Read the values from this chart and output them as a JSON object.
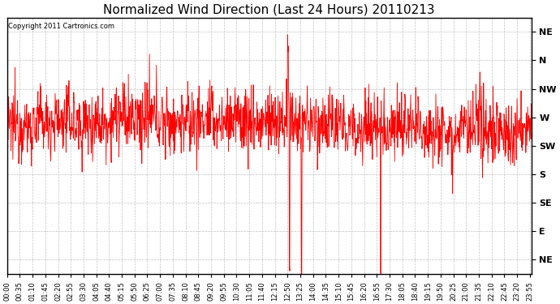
{
  "title": "Normalized Wind Direction (Last 24 Hours) 20110213",
  "copyright_text": "Copyright 2011 Cartronics.com",
  "line_color": "#ff0000",
  "background_color": "#ffffff",
  "plot_bg_color": "#ffffff",
  "ytick_labels": [
    "NE",
    "E",
    "SE",
    "S",
    "SW",
    "W",
    "NW",
    "N",
    "NE"
  ],
  "ytick_values": [
    0,
    1,
    2,
    3,
    4,
    5,
    6,
    7,
    8
  ],
  "ylim": [
    -0.5,
    8.5
  ],
  "grid_color": "#bbbbbb",
  "grid_style": "--",
  "title_fontsize": 11,
  "tick_fontsize": 6,
  "copyright_fontsize": 6,
  "x_tick_interval_min": 35,
  "n_points": 1440
}
